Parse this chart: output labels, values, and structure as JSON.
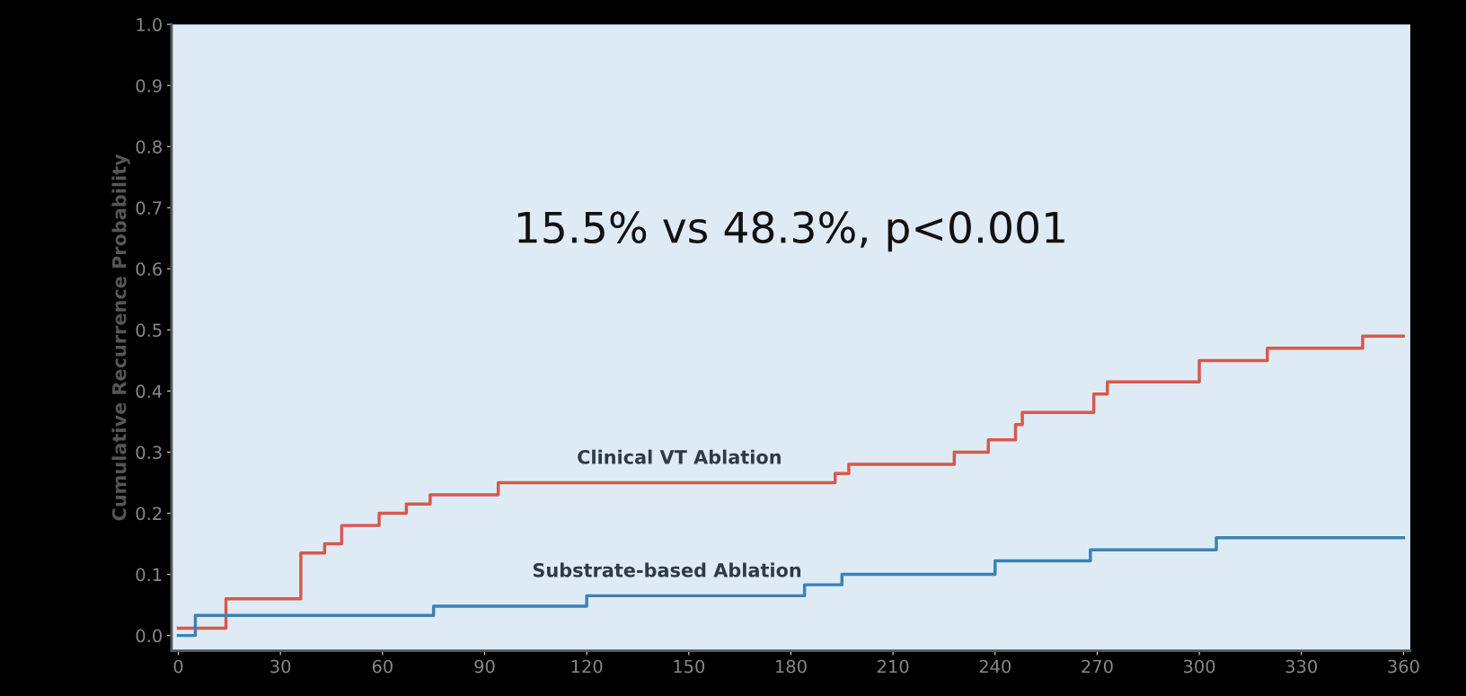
{
  "chart_data": {
    "type": "step",
    "ylabel": "Cumulative Recurrence Probability",
    "annotations": [
      "15.5% vs 48.3%, p<0.001"
    ],
    "series": [
      {
        "name": "Clinical VT Ablation",
        "color": "#d9574c",
        "x": [
          0,
          14,
          36,
          43,
          48,
          59,
          67,
          74,
          94,
          193,
          197,
          228,
          238,
          246,
          248,
          269,
          273,
          300,
          320,
          348,
          360
        ],
        "values": [
          0.012,
          0.06,
          0.135,
          0.15,
          0.18,
          0.2,
          0.215,
          0.23,
          0.25,
          0.265,
          0.28,
          0.3,
          0.32,
          0.345,
          0.365,
          0.395,
          0.415,
          0.45,
          0.47,
          0.49,
          0.49
        ]
      },
      {
        "name": "Substrate-based Ablation",
        "color": "#3b82b5",
        "x": [
          0,
          5,
          75,
          120,
          184,
          195,
          240,
          268,
          305,
          360
        ],
        "values": [
          0.0,
          0.033,
          0.048,
          0.065,
          0.083,
          0.1,
          0.122,
          0.14,
          0.16,
          0.16
        ]
      }
    ],
    "xlim": [
      -2,
      362
    ],
    "xticks": [
      0,
      30,
      60,
      90,
      120,
      150,
      180,
      210,
      240,
      270,
      300,
      330,
      360
    ],
    "ylim": [
      -0.025,
      1.0
    ],
    "yticks": [
      {
        "value": 0,
        "label": "0.0"
      },
      {
        "value": 0.1,
        "label": "0.1"
      },
      {
        "value": 0.2,
        "label": "0.2"
      },
      {
        "value": 0.3,
        "label": "0.3"
      },
      {
        "value": 0.4,
        "label": "0.4"
      },
      {
        "value": 0.5,
        "label": "0.5"
      },
      {
        "value": 0.6,
        "label": "0.6"
      },
      {
        "value": 0.7,
        "label": "0.7"
      },
      {
        "value": 0.8,
        "label": "0.8"
      },
      {
        "value": 0.9,
        "label": "0.9"
      },
      {
        "value": 1.0,
        "label": "1.0"
      }
    ],
    "grid": false,
    "legend": false
  }
}
